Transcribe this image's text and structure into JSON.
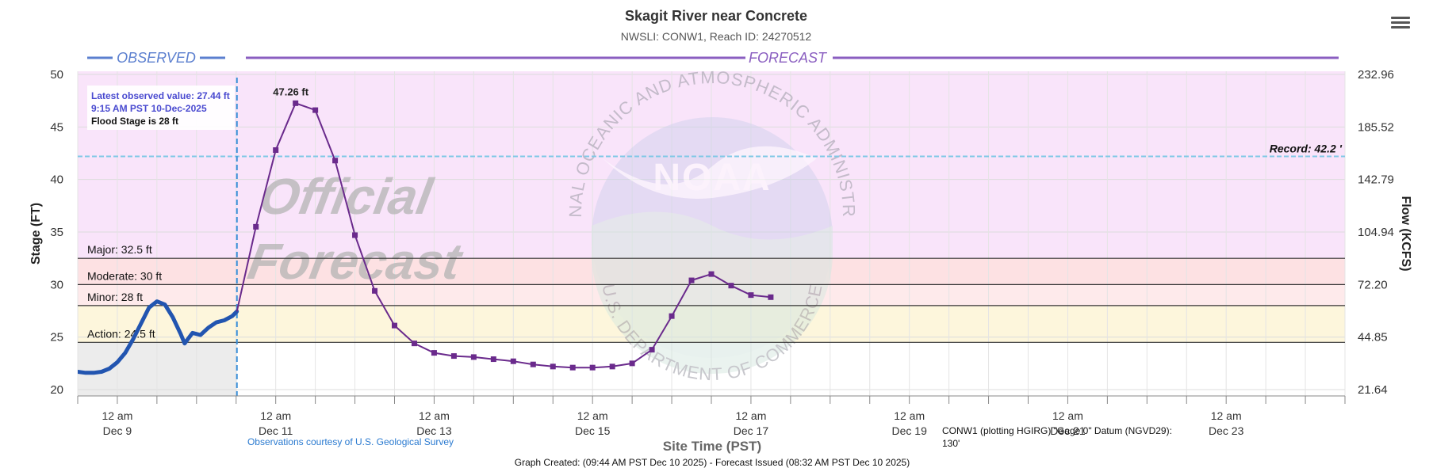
{
  "header": {
    "title": "Skagit River near Concrete",
    "subtitle": "NWSLI: CONW1, Reach ID: 24270512",
    "menu_icon": "hamburger-menu-icon"
  },
  "labels": {
    "observed": "OBSERVED",
    "forecast": "FORECAST",
    "watermark_line1": "Official",
    "watermark_line2": "Forecast",
    "noaa_logo_text": "NOAA",
    "seal_top_text": "NATIONAL OCEANIC AND ATMOSPHERIC ADMINISTRATION",
    "seal_bottom_text": "U.S. DEPARTMENT OF COMMERCE",
    "usgs_credit": "Observations courtesy of U.S. Geological Survey",
    "datum_note": "CONW1 (plotting HGIRG) \"Gage 0\" Datum (NGVD29): 130'",
    "footer": "Graph Created: (09:44 AM PST Dec 10 2025) - Forecast Issued (08:32 AM PST Dec 10 2025)"
  },
  "info_box": {
    "latest": "Latest observed value: 27.44 ft",
    "time": "9:15 AM PST 10-Dec-2025",
    "flood_stage": "Flood Stage is 28 ft"
  },
  "colors": {
    "observed": "#2255b0",
    "forecast": "#6a2a8c",
    "observed_header": "#5b7fcf",
    "forecast_header": "#8a5ec0",
    "major_band": "#f9e4fa",
    "moderate_band": "#fde1e3",
    "minor_band": "#fdf6dc",
    "action_band": "#ffffe8",
    "below_band_observed": "#ececec",
    "record_line": "#7fc8e6",
    "now_line": "#3a8fd8",
    "info_text": "#4a4ad0"
  },
  "chart_data": {
    "type": "line",
    "title": "Skagit River near Concrete",
    "subtitle": "NWSLI: CONW1, Reach ID: 24270512",
    "xlabel": "Site Time (PST)",
    "ylabel": "Stage (FT)",
    "y2label": "Flow (KCFS)",
    "ylim": [
      19.4,
      50.3
    ],
    "y_ticks": [
      20,
      25,
      30,
      35,
      40,
      45,
      50
    ],
    "y2_ticks": [
      {
        "stage": 20,
        "label": "21.64"
      },
      {
        "stage": 25,
        "label": "44.85"
      },
      {
        "stage": 30,
        "label": "72.20"
      },
      {
        "stage": 35,
        "label": "104.94"
      },
      {
        "stage": 40,
        "label": "142.79"
      },
      {
        "stage": 45,
        "label": "185.52"
      },
      {
        "stage": 50,
        "label": "232.96"
      }
    ],
    "xlim_days": [
      -0.5,
      15.5
    ],
    "x_ticks": [
      {
        "day": 0,
        "time": "12 am",
        "date": "Dec 9"
      },
      {
        "day": 2,
        "time": "12 am",
        "date": "Dec 11"
      },
      {
        "day": 4,
        "time": "12 am",
        "date": "Dec 13"
      },
      {
        "day": 6,
        "time": "12 am",
        "date": "Dec 15"
      },
      {
        "day": 8,
        "time": "12 am",
        "date": "Dec 17"
      },
      {
        "day": 10,
        "time": "12 am",
        "date": "Dec 19"
      },
      {
        "day": 12,
        "time": "12 am",
        "date": "Dec 21"
      },
      {
        "day": 14,
        "time": "12 am",
        "date": "Dec 23"
      }
    ],
    "x_minor_step_days": 0.5,
    "now_day": 1.51,
    "thresholds": [
      {
        "name": "Record",
        "label": "Record: 42.2 '",
        "value": 42.2
      },
      {
        "name": "Major",
        "label": "Major: 32.5 ft",
        "value": 32.5
      },
      {
        "name": "Moderate",
        "label": "Moderate: 30 ft",
        "value": 30
      },
      {
        "name": "Minor",
        "label": "Minor: 28 ft",
        "value": 28
      },
      {
        "name": "Action",
        "label": "Action: 24.5 ft",
        "value": 24.5
      }
    ],
    "peak_label": "47.26 ft",
    "series": [
      {
        "name": "Observed",
        "points": [
          [
            -0.5,
            21.7
          ],
          [
            -0.4,
            21.6
          ],
          [
            -0.3,
            21.6
          ],
          [
            -0.2,
            21.7
          ],
          [
            -0.1,
            22.0
          ],
          [
            0.0,
            22.6
          ],
          [
            0.1,
            23.5
          ],
          [
            0.2,
            24.8
          ],
          [
            0.3,
            26.3
          ],
          [
            0.4,
            27.8
          ],
          [
            0.5,
            28.4
          ],
          [
            0.6,
            28.1
          ],
          [
            0.7,
            26.9
          ],
          [
            0.8,
            25.3
          ],
          [
            0.85,
            24.4
          ],
          [
            0.9,
            24.9
          ],
          [
            0.95,
            25.4
          ],
          [
            1.05,
            25.2
          ],
          [
            1.15,
            25.9
          ],
          [
            1.25,
            26.4
          ],
          [
            1.35,
            26.6
          ],
          [
            1.45,
            27.0
          ],
          [
            1.51,
            27.44
          ]
        ]
      },
      {
        "name": "Forecast",
        "points": [
          [
            1.51,
            27.44
          ],
          [
            1.75,
            35.5
          ],
          [
            2.0,
            42.8
          ],
          [
            2.25,
            47.26
          ],
          [
            2.5,
            46.6
          ],
          [
            2.75,
            41.8
          ],
          [
            3.0,
            34.7
          ],
          [
            3.25,
            29.4
          ],
          [
            3.5,
            26.1
          ],
          [
            3.75,
            24.4
          ],
          [
            4.0,
            23.5
          ],
          [
            4.25,
            23.2
          ],
          [
            4.5,
            23.1
          ],
          [
            4.75,
            22.9
          ],
          [
            5.0,
            22.7
          ],
          [
            5.25,
            22.4
          ],
          [
            5.5,
            22.2
          ],
          [
            5.75,
            22.1
          ],
          [
            6.0,
            22.1
          ],
          [
            6.25,
            22.2
          ],
          [
            6.5,
            22.5
          ],
          [
            6.75,
            23.8
          ],
          [
            7.0,
            27.0
          ],
          [
            7.25,
            30.4
          ],
          [
            7.5,
            31.0
          ],
          [
            7.75,
            29.9
          ],
          [
            8.0,
            29.0
          ],
          [
            8.25,
            28.8
          ]
        ]
      }
    ]
  }
}
